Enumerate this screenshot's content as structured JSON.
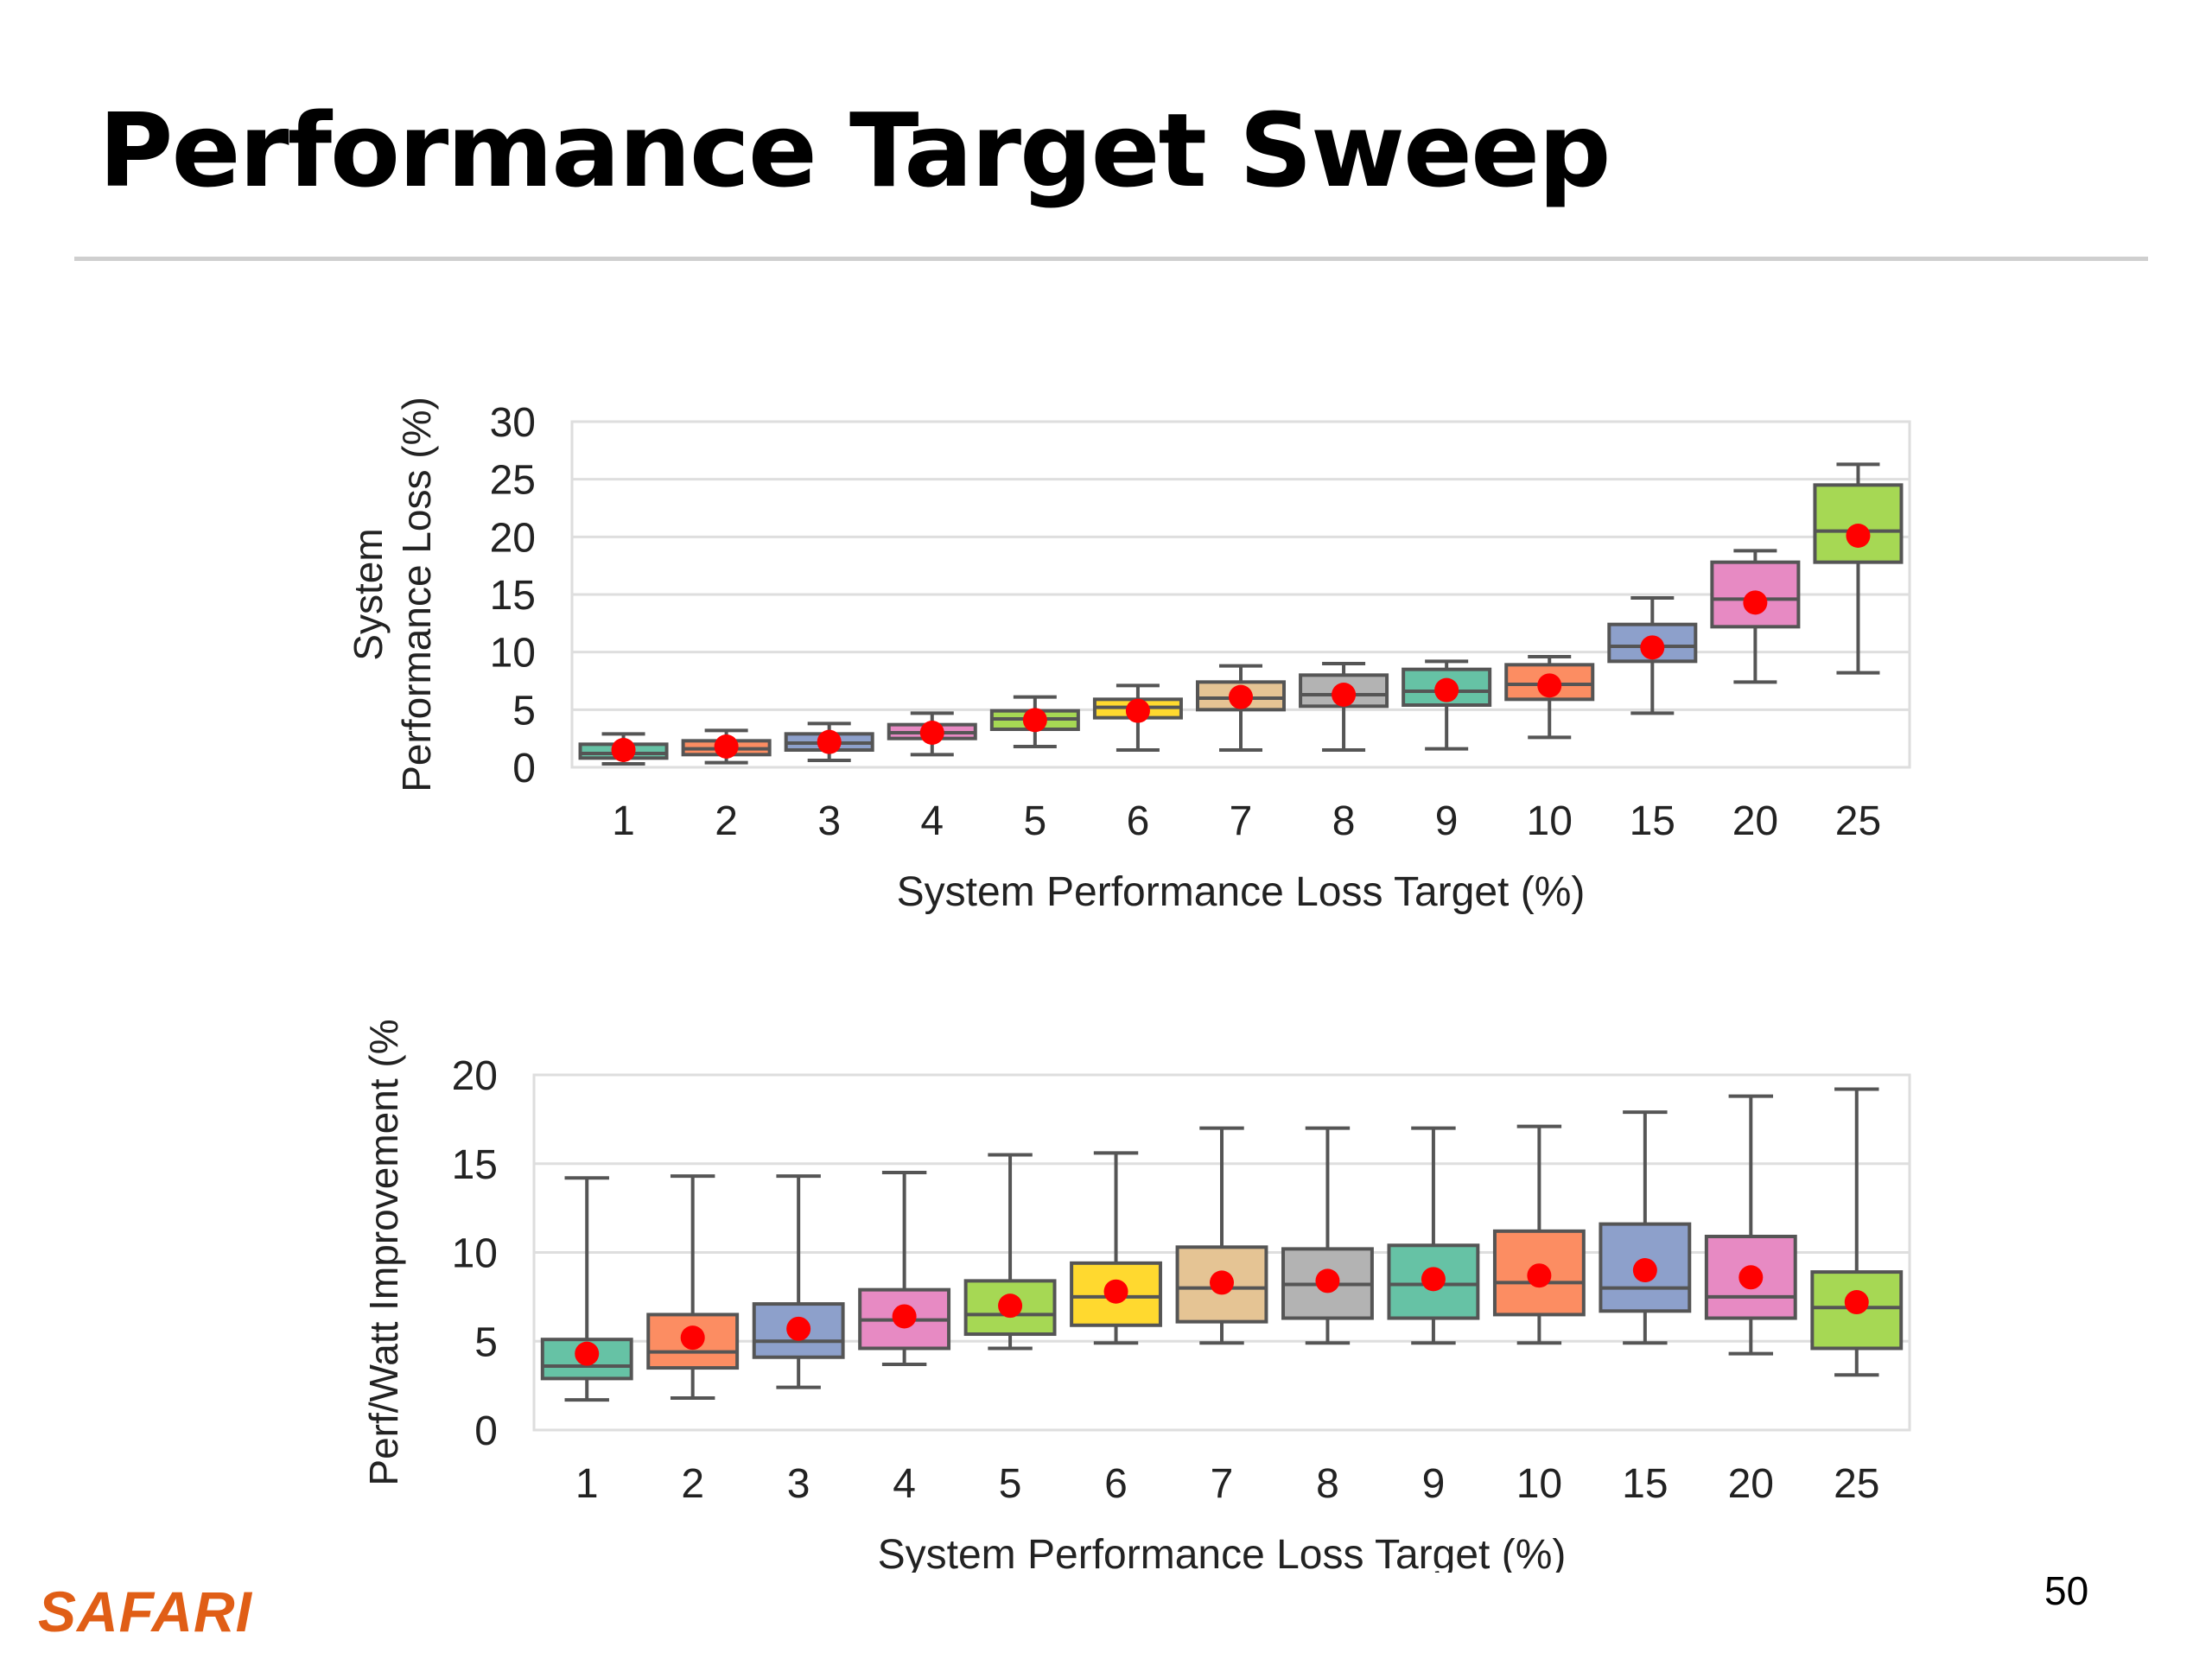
{
  "slide": {
    "title": "Performance Target Sweep",
    "page_number": "50",
    "logo_text": "SAFARI"
  },
  "chart_data": [
    {
      "type": "box",
      "title": "",
      "xlabel": "System Performance Loss Target (%)",
      "ylabel": "System Performance Loss (%)",
      "ylim": [
        0,
        30
      ],
      "yticks": [
        0,
        5,
        10,
        15,
        20,
        25,
        30
      ],
      "grid": true,
      "legend": "none",
      "categories": [
        "1",
        "2",
        "3",
        "4",
        "5",
        "6",
        "7",
        "8",
        "9",
        "10",
        "15",
        "20",
        "25"
      ],
      "box_colors": [
        "#66c2a5",
        "#fc8d62",
        "#8da0cb",
        "#e78ac3",
        "#a6d854",
        "#ffd92f",
        "#e5c494",
        "#b3b3b3",
        "#66c2a5",
        "#fc8d62",
        "#8da0cb",
        "#e78ac3",
        "#a6d854"
      ],
      "mean_marker_color": "#ff0000",
      "whisker_low": [
        0.3,
        0.4,
        0.6,
        1.1,
        1.8,
        1.5,
        1.5,
        1.5,
        1.6,
        2.6,
        4.7,
        7.4,
        8.2
      ],
      "q1": [
        0.8,
        1.1,
        1.5,
        2.5,
        3.3,
        4.3,
        5.0,
        5.3,
        5.4,
        5.9,
        9.2,
        12.2,
        17.8
      ],
      "median": [
        1.2,
        1.6,
        2.1,
        3.0,
        4.2,
        5.2,
        6.0,
        6.3,
        6.6,
        7.2,
        10.5,
        14.6,
        20.5
      ],
      "q3": [
        2.0,
        2.3,
        2.9,
        3.7,
        4.9,
        5.9,
        7.4,
        8.0,
        8.5,
        8.9,
        12.4,
        17.8,
        24.5
      ],
      "whisker_high": [
        2.9,
        3.2,
        3.8,
        4.7,
        6.1,
        7.1,
        8.8,
        9.0,
        9.2,
        9.6,
        14.7,
        18.8,
        26.3
      ],
      "mean": [
        1.5,
        1.8,
        2.2,
        3.0,
        4.1,
        4.9,
        6.1,
        6.3,
        6.7,
        7.1,
        10.4,
        14.3,
        20.1
      ]
    },
    {
      "type": "box",
      "title": "",
      "xlabel": "System Performance Loss Target (%)",
      "ylabel": "Perf/Watt Improvement (%",
      "ylim": [
        0,
        20
      ],
      "yticks": [
        0,
        5,
        10,
        15,
        20
      ],
      "grid": true,
      "legend": "none",
      "categories": [
        "1",
        "2",
        "3",
        "4",
        "5",
        "6",
        "7",
        "8",
        "9",
        "10",
        "15",
        "20",
        "25"
      ],
      "box_colors": [
        "#66c2a5",
        "#fc8d62",
        "#8da0cb",
        "#e78ac3",
        "#a6d854",
        "#ffd92f",
        "#e5c494",
        "#b3b3b3",
        "#66c2a5",
        "#fc8d62",
        "#8da0cb",
        "#e78ac3",
        "#a6d854"
      ],
      "mean_marker_color": "#ff0000",
      "whisker_low": [
        1.7,
        1.8,
        2.4,
        3.7,
        4.6,
        4.9,
        4.9,
        4.9,
        4.9,
        4.9,
        4.9,
        4.3,
        3.1
      ],
      "q1": [
        2.9,
        3.5,
        4.1,
        4.6,
        5.4,
        5.9,
        6.1,
        6.3,
        6.3,
        6.5,
        6.7,
        6.3,
        4.6
      ],
      "median": [
        3.6,
        4.4,
        5.0,
        6.2,
        6.5,
        7.5,
        8.0,
        8.2,
        8.2,
        8.3,
        8.0,
        7.5,
        6.9
      ],
      "q3": [
        5.1,
        6.5,
        7.1,
        7.9,
        8.4,
        9.4,
        10.3,
        10.2,
        10.4,
        11.2,
        11.6,
        10.9,
        8.9
      ],
      "whisker_high": [
        14.2,
        14.3,
        14.3,
        14.5,
        15.5,
        15.6,
        17.0,
        17.0,
        17.0,
        17.1,
        17.9,
        18.8,
        19.2
      ],
      "mean": [
        4.3,
        5.2,
        5.7,
        6.4,
        7.0,
        7.8,
        8.3,
        8.4,
        8.5,
        8.7,
        9.0,
        8.6,
        7.2
      ]
    }
  ]
}
